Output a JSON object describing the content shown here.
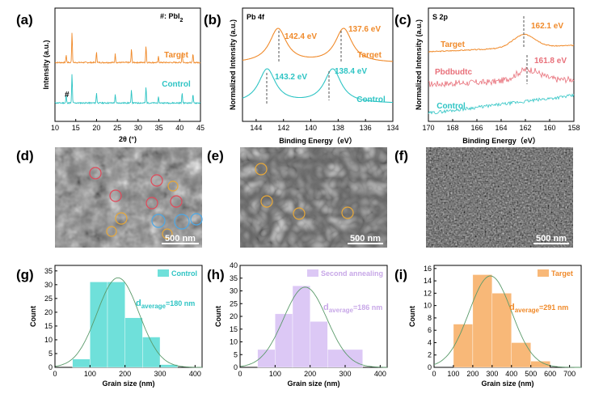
{
  "panels": {
    "a": {
      "letter": "(a)",
      "legend": "#: PbI",
      "legend_sub": "2",
      "xlabel": "2θ (°)",
      "ylabel": "Intensity (a.u.)",
      "series": [
        {
          "name": "Target",
          "color": "#f08a2a"
        },
        {
          "name": "Control",
          "color": "#2ec4c4"
        }
      ],
      "marker": "#",
      "xticks": [
        "10",
        "15",
        "20",
        "25",
        "30",
        "35",
        "40",
        "45"
      ],
      "chart_data": {
        "type": "line",
        "xlim": [
          10,
          45
        ],
        "peaks": [
          12.7,
          14.1,
          20.0,
          24.5,
          28.4,
          31.9,
          34.9,
          40.6,
          43.2
        ],
        "peak_heights": [
          0.25,
          1.0,
          0.35,
          0.28,
          0.45,
          0.55,
          0.2,
          0.35,
          0.28
        ]
      }
    },
    "b": {
      "letter": "(b)",
      "title": "Pb 4f",
      "xlabel": "Binding Energy（eV）",
      "ylabel": "Normalized Intensity (a.u.)",
      "series": [
        {
          "name": "Target",
          "color": "#f08a2a"
        },
        {
          "name": "Control",
          "color": "#2ec4c4"
        }
      ],
      "peak_labels": [
        {
          "text": "142.4 eV",
          "color": "#f08a2a"
        },
        {
          "text": "137.6 eV",
          "color": "#f08a2a"
        },
        {
          "text": "143.2 eV",
          "color": "#2ec4c4"
        },
        {
          "text": "138.4 eV",
          "color": "#2ec4c4"
        }
      ],
      "xticks": [
        "144",
        "142",
        "140",
        "138",
        "136",
        "134"
      ],
      "chart_data": {
        "type": "line",
        "xlim": [
          145,
          134
        ],
        "target_peaks": [
          142.4,
          137.6
        ],
        "control_peaks": [
          143.2,
          138.4
        ]
      }
    },
    "c": {
      "letter": "(c)",
      "title": "S 2p",
      "xlabel": "Binding Energy（eV）",
      "ylabel": "Normalized Intensity (a.u.)",
      "series": [
        {
          "name": "Target",
          "color": "#f08a2a"
        },
        {
          "name": "Pbdbudtc",
          "color": "#e8707a"
        },
        {
          "name": "Control",
          "color": "#2ec4c4"
        }
      ],
      "peak_labels": [
        {
          "text": "162.1 eV",
          "color": "#f08a2a"
        },
        {
          "text": "161.8 eV",
          "color": "#e8707a"
        }
      ],
      "xticks": [
        "170",
        "168",
        "166",
        "164",
        "162",
        "160",
        "158"
      ],
      "chart_data": {
        "type": "line",
        "xlim": [
          170,
          158
        ],
        "target_peak": 162.1,
        "pbdbudtc_peak": 161.8
      }
    },
    "d": {
      "letter": "(d)",
      "scale": "500 nm"
    },
    "e": {
      "letter": "(e)",
      "scale": "500 nm"
    },
    "f": {
      "letter": "(f)",
      "scale": "500 nm"
    },
    "g": {
      "letter": "(g)",
      "legend": "Control",
      "color": "#6fe0da",
      "avg_main": "d",
      "avg_sub": "average",
      "avg_val": "=180 nm",
      "xlabel": "Grain size (nm)",
      "ylabel": "Count",
      "xticks": [
        "0",
        "100",
        "200",
        "300",
        "400"
      ],
      "yticks": [
        "0",
        "5",
        "10",
        "15",
        "20",
        "25",
        "30",
        "35"
      ],
      "chart_data": {
        "type": "bar",
        "bin_edges": [
          50,
          100,
          150,
          200,
          250,
          300,
          350
        ],
        "counts": [
          3,
          31,
          31,
          18,
          11,
          1
        ],
        "ylim": [
          0,
          37
        ],
        "xlim": [
          0,
          420
        ],
        "fit_mean": 180,
        "fit_sd": 60,
        "fit_peak": 32.5
      }
    },
    "h": {
      "letter": "(h)",
      "legend": "Second annealing",
      "color": "#dcc8f5",
      "avg_main": "d",
      "avg_sub": "average",
      "avg_val": "=186 nm",
      "xlabel": "Grain size (nm)",
      "ylabel": "Count",
      "xticks": [
        "0",
        "100",
        "200",
        "300",
        "400"
      ],
      "yticks": [
        "0",
        "5",
        "10",
        "15",
        "20",
        "25",
        "30",
        "35",
        "40"
      ],
      "chart_data": {
        "type": "bar",
        "bin_edges": [
          50,
          100,
          150,
          200,
          250,
          350
        ],
        "counts": [
          7,
          21,
          32,
          18,
          7
        ],
        "ylim": [
          0,
          40
        ],
        "xlim": [
          0,
          420
        ],
        "fit_mean": 186,
        "fit_sd": 62,
        "fit_peak": 31.5
      }
    },
    "i": {
      "letter": "(i)",
      "legend": "Target",
      "color": "#f8b878",
      "avg_main": "d",
      "avg_sub": "average",
      "avg_val": "=291 nm",
      "xlabel": "Grain size (nm)",
      "ylabel": "Count",
      "xticks": [
        "0",
        "100",
        "200",
        "300",
        "400",
        "500",
        "600",
        "700"
      ],
      "yticks": [
        "0",
        "2",
        "4",
        "6",
        "8",
        "10",
        "12",
        "14",
        "16"
      ],
      "chart_data": {
        "type": "bar",
        "bin_edges": [
          100,
          200,
          300,
          400,
          500,
          600
        ],
        "counts": [
          7,
          15,
          12,
          4,
          1
        ],
        "ylim": [
          0,
          16.5
        ],
        "xlim": [
          0,
          760
        ],
        "fit_mean": 291,
        "fit_sd": 110,
        "fit_peak": 14.8
      }
    }
  }
}
